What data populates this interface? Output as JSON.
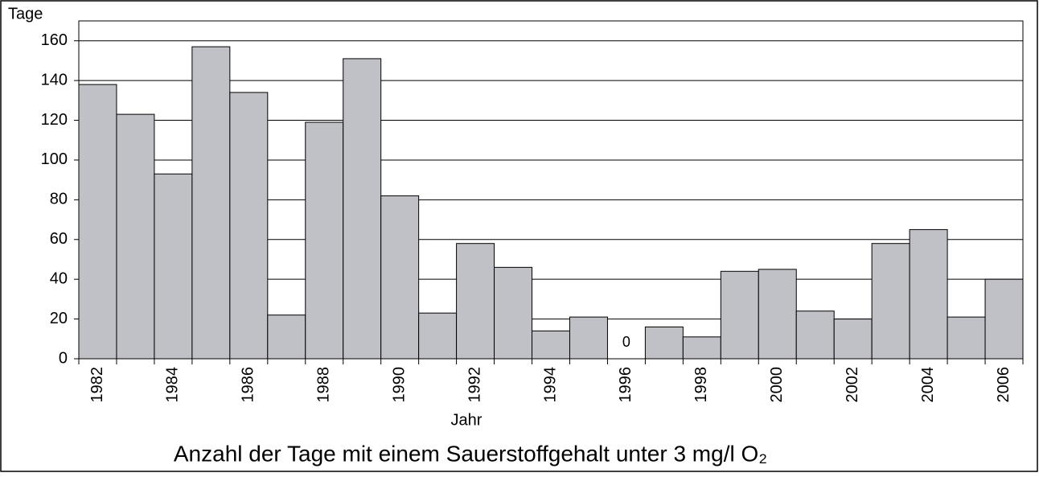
{
  "chart_data": {
    "type": "bar",
    "title": "Anzahl der Tage mit einem Sauerstoffgehalt unter 3 mg/l O₂",
    "x_label": "Jahr",
    "y_label": "Tage",
    "categories": [
      "1982",
      null,
      "1984",
      null,
      "1986",
      null,
      "1988",
      null,
      "1990",
      null,
      "1992",
      null,
      "1994",
      null,
      "1996",
      null,
      "1998",
      null,
      "2000",
      null,
      "2002",
      null,
      "2004",
      null,
      "2006"
    ],
    "values": [
      138,
      123,
      93,
      157,
      134,
      22,
      119,
      151,
      82,
      23,
      58,
      46,
      14,
      21,
      0,
      16,
      11,
      44,
      45,
      24,
      20,
      58,
      65,
      21,
      40
    ],
    "value_labels": [
      null,
      null,
      null,
      null,
      null,
      null,
      null,
      null,
      null,
      null,
      null,
      null,
      null,
      null,
      "0",
      null,
      null,
      null,
      null,
      null,
      null,
      null,
      null,
      null,
      null
    ],
    "color": "#c0c1c6",
    "ylim": [
      0,
      170
    ],
    "yticks": [
      0,
      20,
      40,
      60,
      80,
      100,
      120,
      140,
      160
    ],
    "grid": true
  }
}
